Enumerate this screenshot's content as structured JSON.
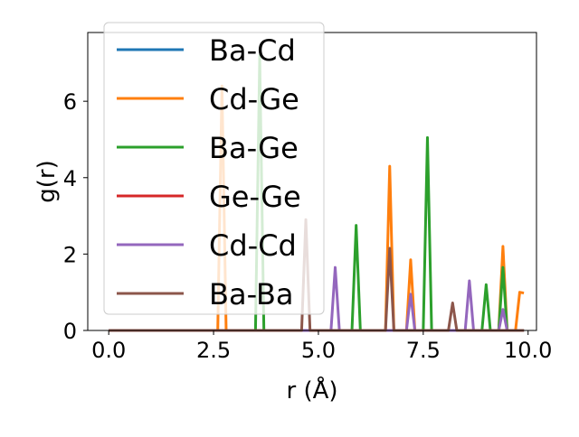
{
  "chart_data": {
    "type": "line",
    "xlabel": "r (Å)",
    "ylabel": "g(r)",
    "xlim": [
      -0.5,
      10.2
    ],
    "ylim": [
      0,
      7.8
    ],
    "xticks": [
      0.0,
      2.5,
      5.0,
      7.5,
      10.0
    ],
    "xtick_labels": [
      "0.0",
      "2.5",
      "5.0",
      "7.5",
      "10.0"
    ],
    "yticks": [
      0,
      2,
      4,
      6
    ],
    "ytick_labels": [
      "0",
      "2",
      "4",
      "6"
    ],
    "grid": false,
    "legend_position": "upper-left",
    "series": [
      {
        "name": "Ba-Cd",
        "color": "#1f77b4",
        "points": [
          [
            0,
            0
          ],
          [
            9.9,
            0
          ]
        ]
      },
      {
        "name": "Cd-Ge",
        "color": "#ff7f0e",
        "points": [
          [
            0,
            0
          ],
          [
            2.6,
            0
          ],
          [
            2.7,
            6.4
          ],
          [
            2.8,
            0
          ],
          [
            6.6,
            0
          ],
          [
            6.7,
            4.3
          ],
          [
            6.8,
            0
          ],
          [
            7.1,
            0
          ],
          [
            7.2,
            1.85
          ],
          [
            7.3,
            0
          ],
          [
            9.3,
            0
          ],
          [
            9.4,
            2.2
          ],
          [
            9.5,
            0
          ],
          [
            9.7,
            0
          ],
          [
            9.8,
            1.0
          ],
          [
            9.9,
            0.98
          ]
        ]
      },
      {
        "name": "Ba-Ge",
        "color": "#2ca02c",
        "points": [
          [
            0,
            0
          ],
          [
            3.5,
            0
          ],
          [
            3.6,
            7.2
          ],
          [
            3.7,
            0
          ],
          [
            5.8,
            0
          ],
          [
            5.9,
            2.75
          ],
          [
            6.0,
            0
          ],
          [
            7.5,
            0
          ],
          [
            7.6,
            5.05
          ],
          [
            7.7,
            0
          ],
          [
            8.9,
            0
          ],
          [
            9.0,
            1.2
          ],
          [
            9.1,
            0
          ],
          [
            9.3,
            0
          ],
          [
            9.4,
            1.65
          ],
          [
            9.5,
            0
          ],
          [
            9.9,
            0
          ]
        ]
      },
      {
        "name": "Ge-Ge",
        "color": "#d62728",
        "points": [
          [
            0,
            0
          ],
          [
            9.9,
            0
          ]
        ]
      },
      {
        "name": "Cd-Cd",
        "color": "#9467bd",
        "points": [
          [
            0,
            0
          ],
          [
            5.3,
            0
          ],
          [
            5.4,
            1.65
          ],
          [
            5.5,
            0
          ],
          [
            7.1,
            0
          ],
          [
            7.2,
            0.95
          ],
          [
            7.3,
            0
          ],
          [
            8.5,
            0
          ],
          [
            8.6,
            1.3
          ],
          [
            8.7,
            0
          ],
          [
            9.3,
            0
          ],
          [
            9.4,
            0.55
          ],
          [
            9.5,
            0
          ],
          [
            9.9,
            0
          ]
        ]
      },
      {
        "name": "Ba-Ba",
        "color": "#8c564b",
        "points": [
          [
            0,
            0
          ],
          [
            4.6,
            0
          ],
          [
            4.7,
            2.9
          ],
          [
            4.8,
            0
          ],
          [
            6.6,
            0
          ],
          [
            6.7,
            2.15
          ],
          [
            6.8,
            0
          ],
          [
            8.1,
            0
          ],
          [
            8.2,
            0.72
          ],
          [
            8.3,
            0
          ],
          [
            9.9,
            0
          ]
        ]
      }
    ]
  }
}
